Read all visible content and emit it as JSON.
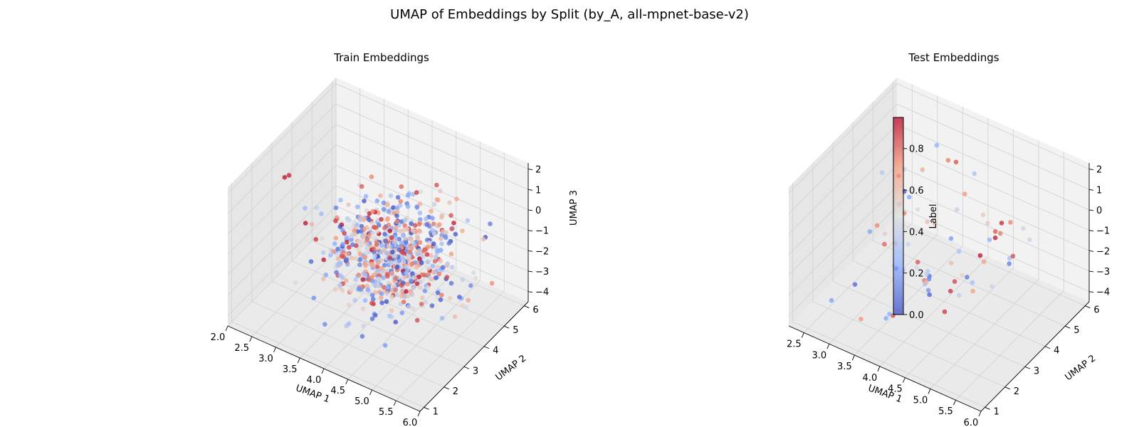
{
  "figure": {
    "title": "UMAP of Embeddings by Split (by_A, all-mpnet-base-v2)"
  },
  "colorbar": {
    "label": "Label",
    "ticks": [
      "0.0",
      "0.2",
      "0.4",
      "0.6",
      "0.8"
    ],
    "tick_values": [
      0.0,
      0.2,
      0.4,
      0.6,
      0.8
    ],
    "range": [
      0,
      0.95
    ]
  },
  "chart_data": [
    {
      "type": "scatter",
      "title": "Train Embeddings",
      "xlabel": "UMAP 1",
      "ylabel": "UMAP 2",
      "zlabel": "UMAP 3",
      "xlim": [
        2.0,
        6.0
      ],
      "ylim": [
        0.8,
        6.2
      ],
      "zlim": [
        -4.5,
        2.3
      ],
      "x_ticks": [
        "2.0",
        "2.5",
        "3.0",
        "3.5",
        "4.0",
        "4.5",
        "5.0",
        "5.5",
        "6.0"
      ],
      "y_ticks": [
        "1",
        "2",
        "3",
        "4",
        "5",
        "6"
      ],
      "z_ticks": [
        "−4",
        "−3",
        "−2",
        "−1",
        "0",
        "1",
        "2"
      ],
      "point_count": 700,
      "point_distribution": "dense cloud centered near UMAP1≈4.3, UMAP2≈3.5, UMAP3≈−1.5; small outlier pair near UMAP1≈2.1, UMAP3≈0.3",
      "color_by": "Label (0.0–0.95, coolwarm colormap)"
    },
    {
      "type": "scatter",
      "title": "Test Embeddings",
      "xlabel": "UMAP 1",
      "ylabel": "UMAP 2",
      "zlabel": "",
      "xlim": [
        2.2,
        6.0
      ],
      "ylim": [
        0.8,
        6.2
      ],
      "zlim": [
        -4.5,
        2.3
      ],
      "x_ticks": [
        "2.5",
        "3.0",
        "3.5",
        "4.0",
        "4.5",
        "5.0",
        "5.5",
        "6.0"
      ],
      "y_ticks": [
        "1",
        "2",
        "3",
        "4",
        "5",
        "6"
      ],
      "z_ticks": [
        "−4",
        "−3",
        "−2",
        "−1",
        "0",
        "1",
        "2"
      ],
      "point_count": 70,
      "point_distribution": "sparse scatter spanning the cube",
      "color_by": "Label (0.0–0.95, coolwarm colormap)"
    }
  ]
}
